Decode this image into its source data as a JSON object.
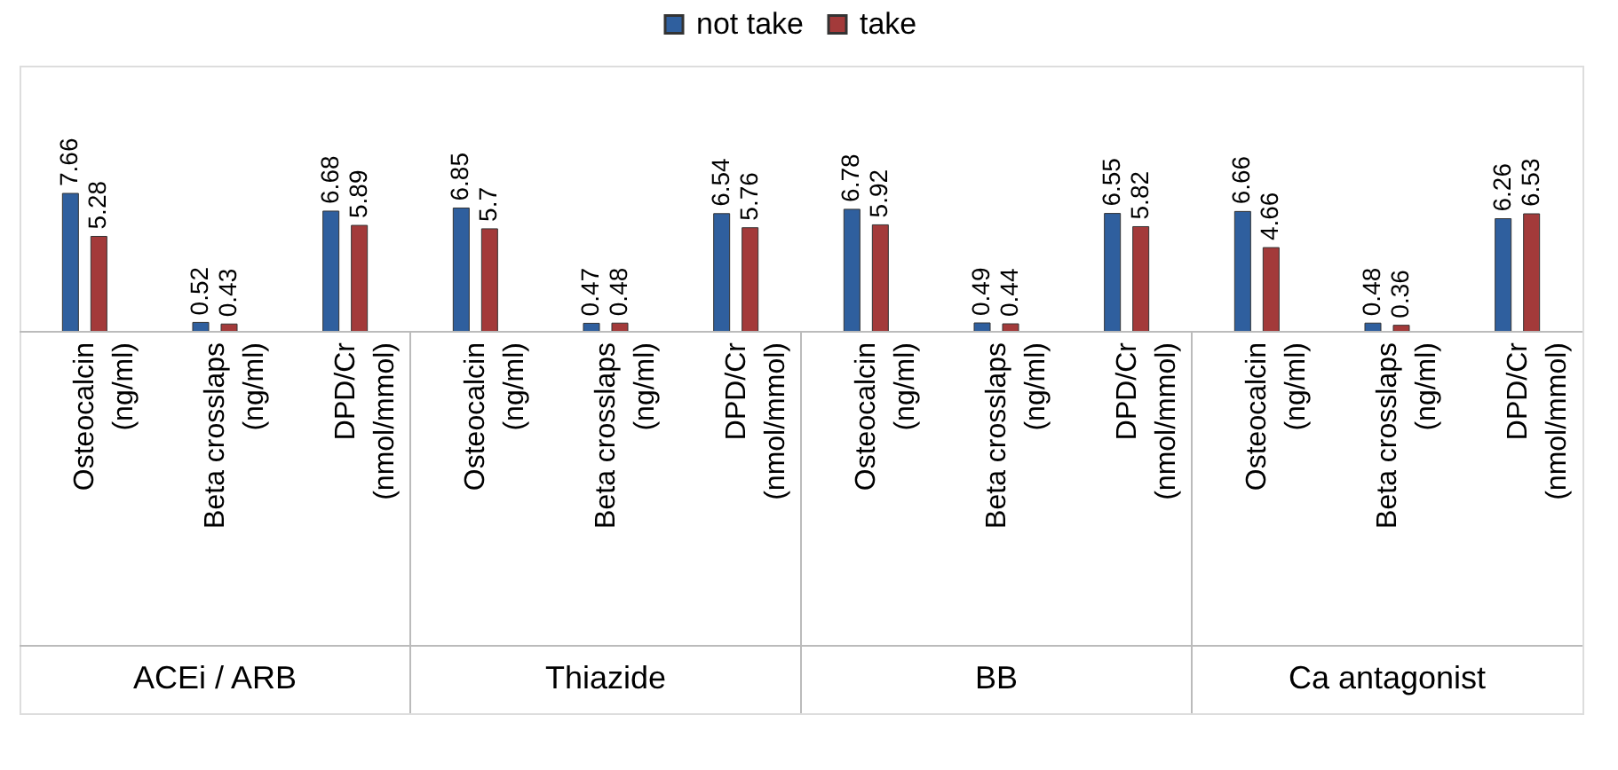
{
  "chart_data": {
    "type": "bar",
    "categories": [
      "Osteocalcin (ng/ml)",
      "Beta crosslaps (ng/ml)",
      "DPD/Cr (nmol/mmol)",
      "Osteocalcin (ng/ml)",
      "Beta crosslaps (ng/ml)",
      "DPD/Cr (nmol/mmol)",
      "Osteocalcin (ng/ml)",
      "Beta crosslaps (ng/ml)",
      "DPD/Cr (nmol/mmol)",
      "Osteocalcin (ng/ml)",
      "Beta crosslaps (ng/ml)",
      "DPD/Cr (nmol/mmol)"
    ],
    "series": [
      {
        "name": "not take",
        "color": "#2f5f9e",
        "values": [
          7.66,
          0.52,
          6.68,
          6.85,
          0.47,
          6.54,
          6.78,
          0.49,
          6.55,
          6.66,
          0.48,
          6.26
        ]
      },
      {
        "name": "take",
        "color": "#a33a3a",
        "values": [
          5.28,
          0.43,
          5.89,
          5.7,
          0.48,
          5.76,
          5.92,
          0.44,
          5.82,
          4.66,
          0.36,
          6.53
        ]
      }
    ],
    "annotations": [
      "ACEi / ARB",
      "Thiazide",
      "BB",
      "Ca antagonist"
    ],
    "data_labels": true,
    "legend": "top"
  }
}
